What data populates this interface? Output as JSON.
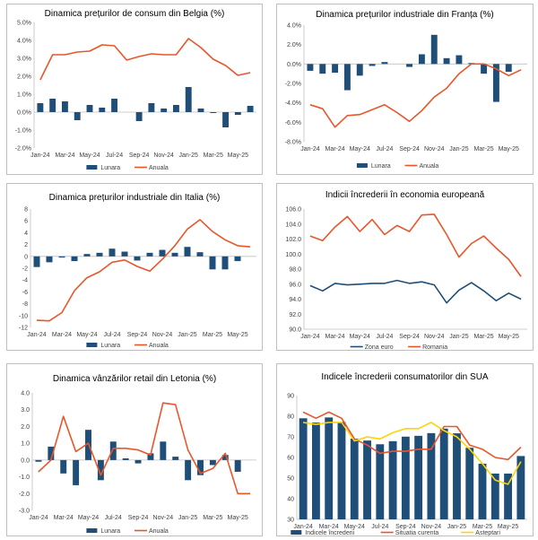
{
  "chart_data": [
    {
      "type": "bar+line",
      "title": "Dinamica prețurilor de consum din Belgia (%)",
      "categories": [
        "Jan-24",
        "Feb-24",
        "Mar-24",
        "Apr-24",
        "May-24",
        "Jun-24",
        "Jul-24",
        "Aug-24",
        "Sep-24",
        "Oct-24",
        "Nov-24",
        "Dec-24",
        "Jan-25",
        "Feb-25",
        "Mar-25",
        "Apr-25",
        "May-25",
        "Jun-25"
      ],
      "x_tick_labels": [
        "Jan-24",
        "Mar-24",
        "May-24",
        "Jul-24",
        "Sep-24",
        "Nov-24",
        "Jan-25",
        "Mar-25",
        "May-25"
      ],
      "ylim": [
        -2.0,
        5.0
      ],
      "yticks": [
        -2.0,
        -1.0,
        0.0,
        1.0,
        2.0,
        3.0,
        4.0,
        5.0
      ],
      "ytick_labels": [
        "-2.0%",
        "-1.0%",
        "0.0%",
        "1.0%",
        "2.0%",
        "3.0%",
        "4.0%",
        "5.0%"
      ],
      "series": [
        {
          "name": "Lunara",
          "kind": "bar",
          "color": "#1f4e79",
          "values": [
            0.5,
            0.75,
            0.6,
            -0.45,
            0.4,
            0.25,
            0.75,
            0.0,
            -0.5,
            0.5,
            0.2,
            0.4,
            1.4,
            0.2,
            -0.05,
            -0.85,
            -0.15,
            0.35
          ]
        },
        {
          "name": "Anuala",
          "kind": "line",
          "color": "#e8562a",
          "values": [
            1.8,
            3.2,
            3.2,
            3.35,
            3.4,
            3.75,
            3.7,
            2.9,
            3.1,
            3.25,
            3.2,
            3.2,
            4.1,
            3.6,
            2.95,
            2.6,
            2.05,
            2.2
          ]
        }
      ]
    },
    {
      "type": "bar+line",
      "title": "Dinamica prețurilor industriale din Franța (%)",
      "categories": [
        "Jan-24",
        "Feb-24",
        "Mar-24",
        "Apr-24",
        "May-24",
        "Jun-24",
        "Jul-24",
        "Aug-24",
        "Sep-24",
        "Oct-24",
        "Nov-24",
        "Dec-24",
        "Jan-25",
        "Feb-25",
        "Mar-25",
        "Apr-25",
        "May-25",
        "Jun-25"
      ],
      "x_tick_labels": [
        "Jan-24",
        "Mar-24",
        "May-24",
        "Jul-24",
        "Sep-24",
        "Nov-24",
        "Jan-25",
        "Mar-25",
        "May-25"
      ],
      "ylim": [
        -8.0,
        4.0
      ],
      "yticks": [
        -8.0,
        -6.0,
        -4.0,
        -2.0,
        0.0,
        2.0,
        4.0
      ],
      "ytick_labels": [
        "-8.0%",
        "-6.0%",
        "-4.0%",
        "-2.0%",
        "0.0%",
        "2.0%",
        "4.0%"
      ],
      "series": [
        {
          "name": "Lunara",
          "kind": "bar",
          "color": "#1f4e79",
          "values": [
            -0.7,
            -1.0,
            -0.9,
            -2.7,
            -1.2,
            -0.2,
            0.2,
            0.0,
            -0.3,
            1.0,
            3.0,
            0.6,
            0.9,
            0.1,
            -1.0,
            -3.9,
            -0.8,
            0.0
          ]
        },
        {
          "name": "Anuala",
          "kind": "line",
          "color": "#e8562a",
          "values": [
            -4.2,
            -4.6,
            -6.5,
            -5.3,
            -5.2,
            -4.7,
            -4.2,
            -5.0,
            -5.9,
            -4.8,
            -3.4,
            -2.5,
            -1.0,
            0.0,
            0.0,
            -0.5,
            -1.2,
            -0.6
          ]
        }
      ]
    },
    {
      "type": "bar+line",
      "title": "Dinamica prețurilor industriale din Italia (%)",
      "categories": [
        "Jan-24",
        "Feb-24",
        "Mar-24",
        "Apr-24",
        "May-24",
        "Jun-24",
        "Jul-24",
        "Aug-24",
        "Sep-24",
        "Oct-24",
        "Nov-24",
        "Dec-24",
        "Jan-25",
        "Feb-25",
        "Mar-25",
        "Apr-25",
        "May-25",
        "Jun-25"
      ],
      "x_tick_labels": [
        "Jan-24",
        "Mar-24",
        "May-24",
        "Jul-24",
        "Sep-24",
        "Nov-24",
        "Jan-25",
        "Mar-25",
        "May-25"
      ],
      "ylim": [
        -12,
        8
      ],
      "yticks": [
        -12,
        -10,
        -8,
        -6,
        -4,
        -2,
        0,
        2,
        4,
        6,
        8
      ],
      "ytick_labels": [
        "-12",
        "-10",
        "-8",
        "-6",
        "-4",
        "-2",
        "0",
        "2",
        "4",
        "6",
        "8"
      ],
      "series": [
        {
          "name": "Lunara",
          "kind": "bar",
          "color": "#1f4e79",
          "values": [
            -1.8,
            -1.0,
            -0.2,
            -0.8,
            0.4,
            0.6,
            1.3,
            0.8,
            -0.7,
            0.6,
            1.1,
            0.6,
            1.6,
            0.7,
            -2.2,
            -2.2,
            -0.8,
            0.0
          ]
        },
        {
          "name": "Anuala",
          "kind": "line",
          "color": "#e8562a",
          "values": [
            -10.8,
            -10.9,
            -9.5,
            -5.8,
            -3.6,
            -2.6,
            -1.0,
            -0.6,
            -1.7,
            -2.5,
            -0.5,
            1.8,
            4.6,
            6.2,
            4.2,
            2.8,
            1.8,
            1.6
          ]
        }
      ]
    },
    {
      "type": "line",
      "title": "Indicii încrederii în economia europeană",
      "categories": [
        "Jan-24",
        "Feb-24",
        "Mar-24",
        "Apr-24",
        "May-24",
        "Jun-24",
        "Jul-24",
        "Aug-24",
        "Sep-24",
        "Oct-24",
        "Nov-24",
        "Dec-24",
        "Jan-25",
        "Feb-25",
        "Mar-25",
        "Apr-25",
        "May-25",
        "Jun-25"
      ],
      "x_tick_labels": [
        "Jan-24",
        "Mar-24",
        "May-24",
        "Jul-24",
        "Sep-24",
        "Nov-24",
        "Jan-25",
        "Mar-25",
        "May-25"
      ],
      "ylim": [
        90.0,
        106.0
      ],
      "yticks": [
        90.0,
        92.0,
        94.0,
        96.0,
        98.0,
        100.0,
        102.0,
        104.0,
        106.0
      ],
      "ytick_labels": [
        "90.0",
        "92.0",
        "94.0",
        "96.0",
        "98.0",
        "100.0",
        "102.0",
        "104.0",
        "106.0"
      ],
      "series": [
        {
          "name": "Zona euro",
          "kind": "line",
          "color": "#1f4e79",
          "values": [
            95.8,
            95.1,
            96.1,
            95.9,
            96.0,
            96.1,
            96.1,
            96.5,
            96.1,
            96.3,
            95.9,
            93.5,
            95.2,
            96.2,
            95.1,
            93.8,
            94.8,
            94.0
          ]
        },
        {
          "name": "Romania",
          "kind": "line",
          "color": "#e8562a",
          "values": [
            102.4,
            101.8,
            103.6,
            105.0,
            103.0,
            104.6,
            102.6,
            103.8,
            103.0,
            105.2,
            105.3,
            102.6,
            99.6,
            101.4,
            102.4,
            100.8,
            99.3,
            97.0
          ]
        }
      ]
    },
    {
      "type": "bar+line",
      "title": "Dinamica vânzărilor retail din Letonia (%)",
      "categories": [
        "Jan-24",
        "Feb-24",
        "Mar-24",
        "Apr-24",
        "May-24",
        "Jun-24",
        "Jul-24",
        "Aug-24",
        "Sep-24",
        "Oct-24",
        "Nov-24",
        "Dec-24",
        "Jan-25",
        "Feb-25",
        "Mar-25",
        "Apr-25",
        "May-25",
        "Jun-25"
      ],
      "x_tick_labels": [
        "Jan-24",
        "Mar-24",
        "May-24",
        "Jul-24",
        "Sep-24",
        "Nov-24",
        "Jan-25",
        "Mar-25",
        "May-25"
      ],
      "ylim": [
        -3.0,
        4.0
      ],
      "yticks": [
        -3.0,
        -2.0,
        -1.0,
        0.0,
        1.0,
        2.0,
        3.0,
        4.0
      ],
      "ytick_labels": [
        "-3.0",
        "-2.0",
        "-1.0",
        "0.0",
        "1.0",
        "2.0",
        "3.0",
        "4.0"
      ],
      "series": [
        {
          "name": "Lunara",
          "kind": "bar",
          "color": "#1f4e79",
          "values": [
            -0.1,
            0.8,
            -0.8,
            -1.5,
            1.8,
            -1.2,
            1.1,
            0.1,
            -0.2,
            0.4,
            1.1,
            0.2,
            -1.2,
            -0.9,
            -0.3,
            0.3,
            -0.7,
            0.0
          ]
        },
        {
          "name": "Anuala",
          "kind": "line",
          "color": "#e8562a",
          "values": [
            -0.7,
            0.0,
            2.6,
            0.5,
            1.0,
            -0.9,
            0.7,
            0.7,
            0.6,
            0.3,
            3.4,
            3.3,
            0.6,
            -0.8,
            -0.5,
            0.4,
            -2.0,
            -2.0
          ]
        }
      ]
    },
    {
      "type": "bar+line",
      "title": "Indicele încrederii consumatorilor din SUA",
      "categories": [
        "Jan-24",
        "Feb-24",
        "Mar-24",
        "Apr-24",
        "May-24",
        "Jun-24",
        "Jul-24",
        "Aug-24",
        "Sep-24",
        "Oct-24",
        "Nov-24",
        "Dec-24",
        "Jan-25",
        "Feb-25",
        "Mar-25",
        "Apr-25",
        "May-25",
        "Jun-25"
      ],
      "x_tick_labels": [
        "Jan-24",
        "Mar-24",
        "May-24",
        "Jul-24",
        "Sep-24",
        "Nov-24",
        "Jan-25",
        "Mar-25",
        "May-25"
      ],
      "ylim": [
        30,
        90
      ],
      "yticks": [
        30,
        40,
        50,
        60,
        70,
        80,
        90
      ],
      "ytick_labels": [
        "30",
        "40",
        "50",
        "60",
        "70",
        "80",
        "90"
      ],
      "series": [
        {
          "name": "Indicele încrederii",
          "kind": "bar",
          "color": "#1f4e79",
          "values": [
            79.0,
            76.9,
            79.4,
            77.2,
            69.1,
            68.2,
            66.4,
            67.9,
            70.1,
            70.5,
            71.8,
            74.0,
            71.7,
            64.7,
            57.0,
            52.2,
            52.2,
            60.7
          ]
        },
        {
          "name": "Situatia curenta",
          "kind": "line",
          "color": "#e8562a",
          "values": [
            82,
            79,
            82,
            79,
            69,
            66,
            62,
            63,
            63,
            64,
            64,
            75,
            75,
            66,
            64,
            60,
            59,
            65
          ]
        },
        {
          "name": "Asteptari",
          "kind": "line",
          "color": "#ffd400",
          "values": [
            77,
            76,
            77,
            77,
            68,
            70,
            69,
            72,
            74,
            74,
            77,
            73,
            70,
            64,
            57,
            49,
            47,
            58
          ]
        }
      ]
    }
  ]
}
